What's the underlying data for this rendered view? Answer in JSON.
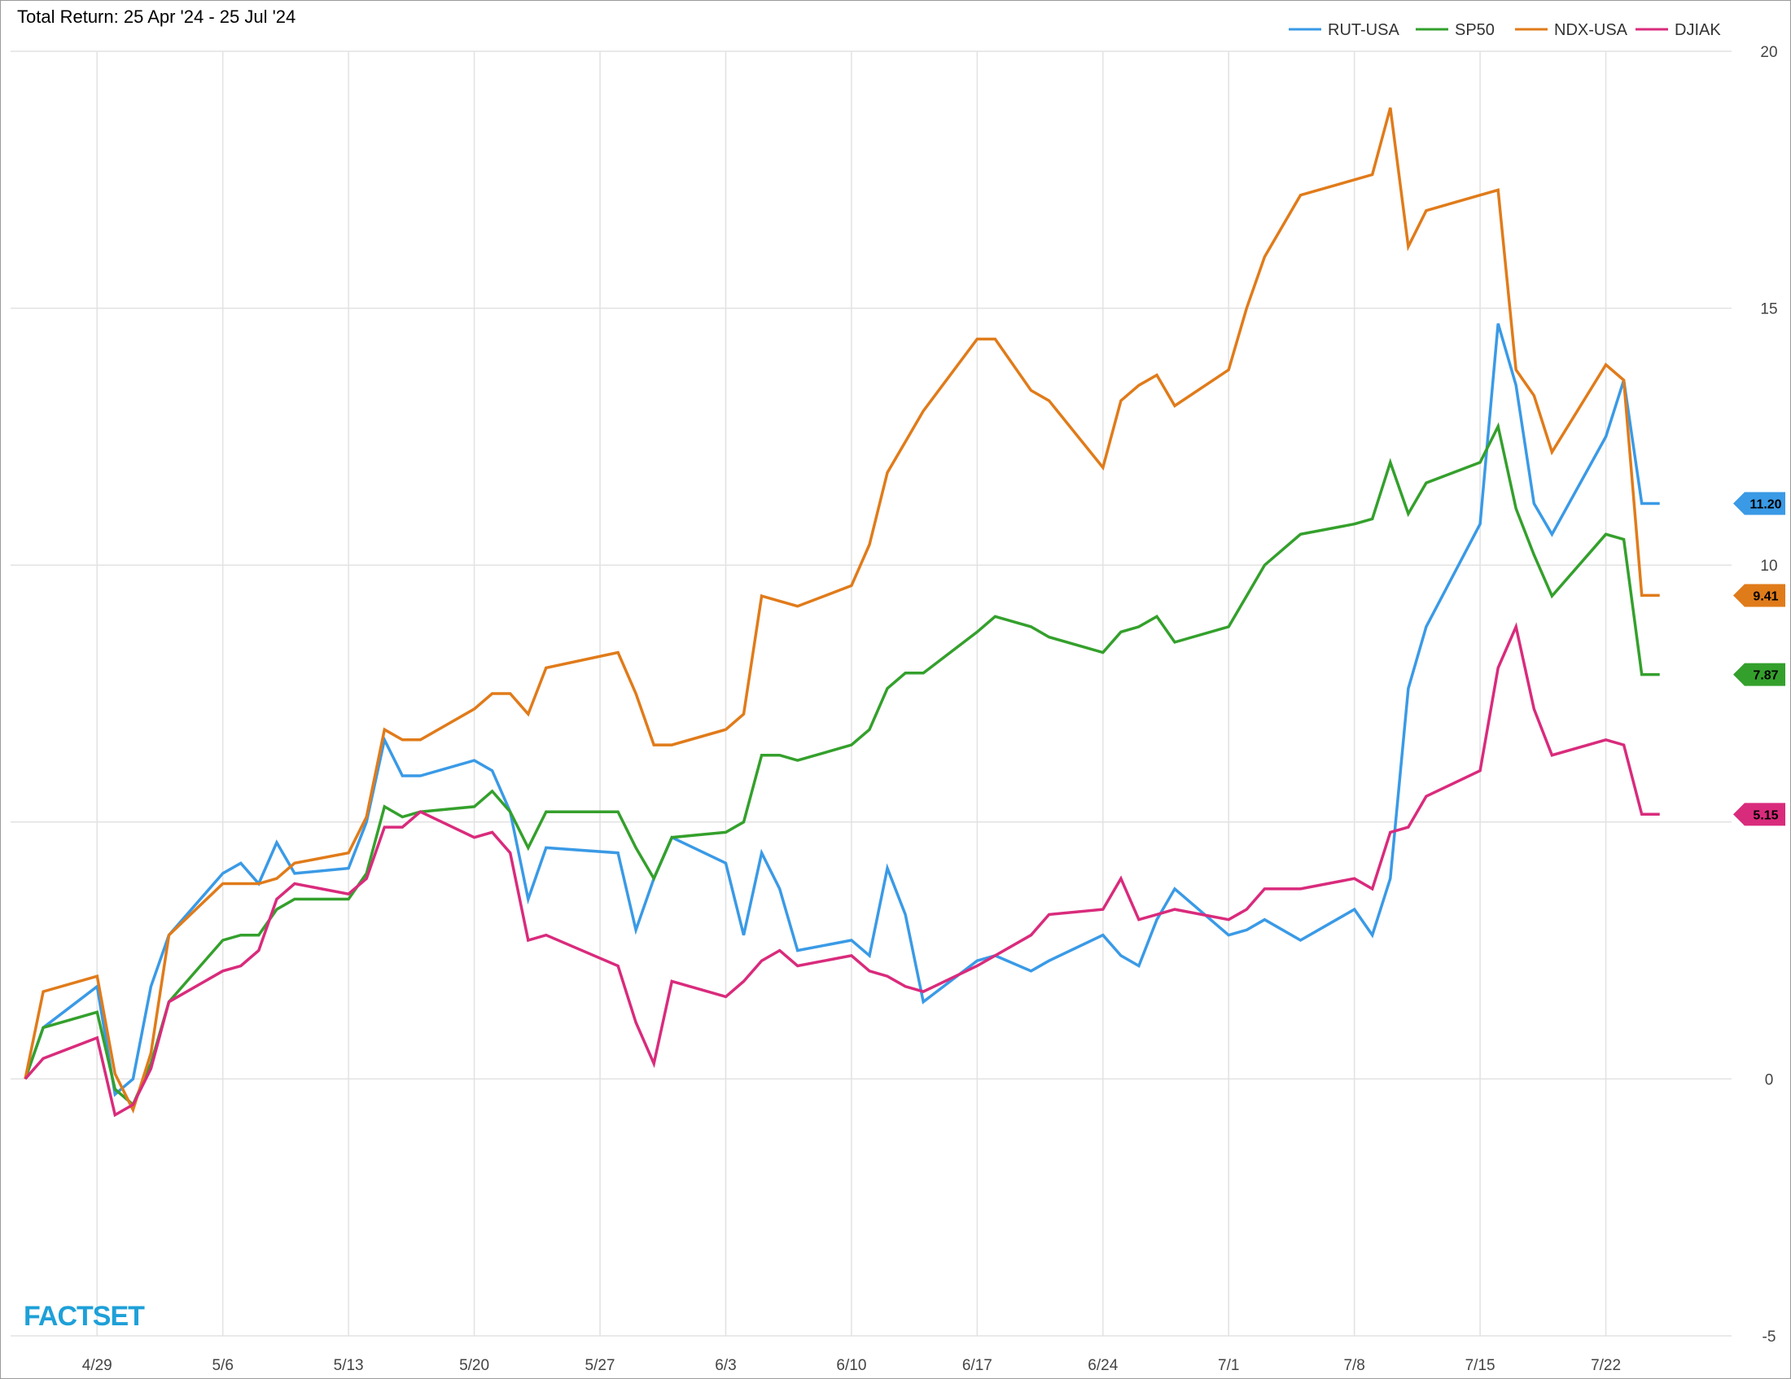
{
  "chart_data": {
    "type": "line",
    "title": "Total Return: 25 Apr '24 - 25 Jul '24",
    "brand": "FACTSET",
    "xlabel": "",
    "ylabel": "",
    "ylim": [
      -5,
      20
    ],
    "y_ticks": [
      20,
      15,
      10,
      0,
      -5
    ],
    "y_gridlines": [
      -5,
      0,
      5,
      10,
      15,
      20
    ],
    "grid": true,
    "legend_position": "top-right",
    "y_axis_side": "right",
    "x_tick_labels": [
      "4/29",
      "5/6",
      "5/13",
      "5/20",
      "5/27",
      "6/3",
      "6/10",
      "6/17",
      "6/24",
      "7/1",
      "7/8",
      "7/15",
      "7/22"
    ],
    "x_tick_dates": [
      "2024-04-29",
      "2024-05-06",
      "2024-05-13",
      "2024-05-20",
      "2024-05-27",
      "2024-06-03",
      "2024-06-10",
      "2024-06-17",
      "2024-06-24",
      "2024-07-01",
      "2024-07-08",
      "2024-07-15",
      "2024-07-22"
    ],
    "x": [
      "2024-04-25",
      "2024-04-26",
      "2024-04-29",
      "2024-04-30",
      "2024-05-01",
      "2024-05-02",
      "2024-05-03",
      "2024-05-06",
      "2024-05-07",
      "2024-05-08",
      "2024-05-09",
      "2024-05-10",
      "2024-05-13",
      "2024-05-14",
      "2024-05-15",
      "2024-05-16",
      "2024-05-17",
      "2024-05-20",
      "2024-05-21",
      "2024-05-22",
      "2024-05-23",
      "2024-05-24",
      "2024-05-28",
      "2024-05-29",
      "2024-05-30",
      "2024-05-31",
      "2024-06-03",
      "2024-06-04",
      "2024-06-05",
      "2024-06-06",
      "2024-06-07",
      "2024-06-10",
      "2024-06-11",
      "2024-06-12",
      "2024-06-13",
      "2024-06-14",
      "2024-06-17",
      "2024-06-18",
      "2024-06-20",
      "2024-06-21",
      "2024-06-24",
      "2024-06-25",
      "2024-06-26",
      "2024-06-27",
      "2024-06-28",
      "2024-07-01",
      "2024-07-02",
      "2024-07-03",
      "2024-07-05",
      "2024-07-08",
      "2024-07-09",
      "2024-07-10",
      "2024-07-11",
      "2024-07-12",
      "2024-07-15",
      "2024-07-16",
      "2024-07-17",
      "2024-07-18",
      "2024-07-19",
      "2024-07-22",
      "2024-07-23",
      "2024-07-24",
      "2024-07-25"
    ],
    "series": [
      {
        "name": "RUT-USA",
        "color": "#3a9ae6",
        "last_label": "11.20",
        "values": [
          0.0,
          1.0,
          1.8,
          -0.3,
          0.0,
          1.8,
          2.8,
          4.0,
          4.2,
          3.8,
          4.6,
          4.0,
          4.1,
          5.0,
          6.6,
          5.9,
          5.9,
          6.2,
          6.0,
          5.2,
          3.5,
          4.5,
          4.4,
          2.9,
          3.9,
          4.7,
          4.2,
          2.8,
          4.4,
          3.7,
          2.5,
          2.7,
          2.4,
          4.1,
          3.2,
          1.5,
          2.3,
          2.4,
          2.1,
          2.3,
          2.8,
          2.4,
          2.2,
          3.1,
          3.7,
          2.8,
          2.9,
          3.1,
          2.7,
          3.3,
          2.8,
          3.9,
          7.6,
          8.8,
          10.8,
          14.7,
          13.5,
          11.2,
          10.6,
          12.5,
          13.6,
          11.2,
          11.2
        ]
      },
      {
        "name": "SP50",
        "color": "#34a02c",
        "last_label": "7.87",
        "values": [
          0.0,
          1.0,
          1.3,
          -0.2,
          -0.5,
          0.3,
          1.5,
          2.7,
          2.8,
          2.8,
          3.3,
          3.5,
          3.5,
          4.0,
          5.3,
          5.1,
          5.2,
          5.3,
          5.6,
          5.2,
          4.5,
          5.2,
          5.2,
          4.5,
          3.9,
          4.7,
          4.8,
          5.0,
          6.3,
          6.3,
          6.2,
          6.5,
          6.8,
          7.6,
          7.9,
          7.9,
          8.7,
          9.0,
          8.8,
          8.6,
          8.3,
          8.7,
          8.8,
          9.0,
          8.5,
          8.8,
          9.4,
          10.0,
          10.6,
          10.8,
          10.9,
          12.0,
          11.0,
          11.6,
          12.0,
          12.7,
          11.1,
          10.2,
          9.4,
          10.6,
          10.5,
          7.87,
          7.87
        ]
      },
      {
        "name": "NDX-USA",
        "color": "#e07b1a",
        "last_label": "9.41",
        "values": [
          0.0,
          1.7,
          2.0,
          0.1,
          -0.6,
          0.5,
          2.8,
          3.8,
          3.8,
          3.8,
          3.9,
          4.2,
          4.4,
          5.1,
          6.8,
          6.6,
          6.6,
          7.2,
          7.5,
          7.5,
          7.1,
          8.0,
          8.3,
          7.5,
          6.5,
          6.5,
          6.8,
          7.1,
          9.4,
          9.3,
          9.2,
          9.6,
          10.4,
          11.8,
          12.4,
          13.0,
          14.4,
          14.4,
          13.4,
          13.2,
          11.9,
          13.2,
          13.5,
          13.7,
          13.1,
          13.8,
          15.0,
          16.0,
          17.2,
          17.5,
          17.6,
          18.9,
          16.2,
          16.9,
          17.2,
          17.3,
          13.8,
          13.3,
          12.2,
          13.9,
          13.6,
          9.41,
          9.41
        ]
      },
      {
        "name": "DJIAK",
        "color": "#d92b7c",
        "last_label": "5.15",
        "values": [
          0.0,
          0.4,
          0.8,
          -0.7,
          -0.5,
          0.2,
          1.5,
          2.1,
          2.2,
          2.5,
          3.5,
          3.8,
          3.6,
          3.9,
          4.9,
          4.9,
          5.2,
          4.7,
          4.8,
          4.4,
          2.7,
          2.8,
          2.2,
          1.1,
          0.3,
          1.9,
          1.6,
          1.9,
          2.3,
          2.5,
          2.2,
          2.4,
          2.1,
          2.0,
          1.8,
          1.7,
          2.2,
          2.4,
          2.8,
          3.2,
          3.3,
          3.9,
          3.1,
          3.2,
          3.3,
          3.1,
          3.3,
          3.7,
          3.7,
          3.9,
          3.7,
          4.8,
          4.9,
          5.5,
          6.0,
          8.0,
          8.8,
          7.2,
          6.3,
          6.6,
          6.5,
          5.15,
          5.15
        ]
      }
    ]
  },
  "colors": {
    "grid": "#e2e2e2",
    "brand": "#1ea0d8"
  }
}
